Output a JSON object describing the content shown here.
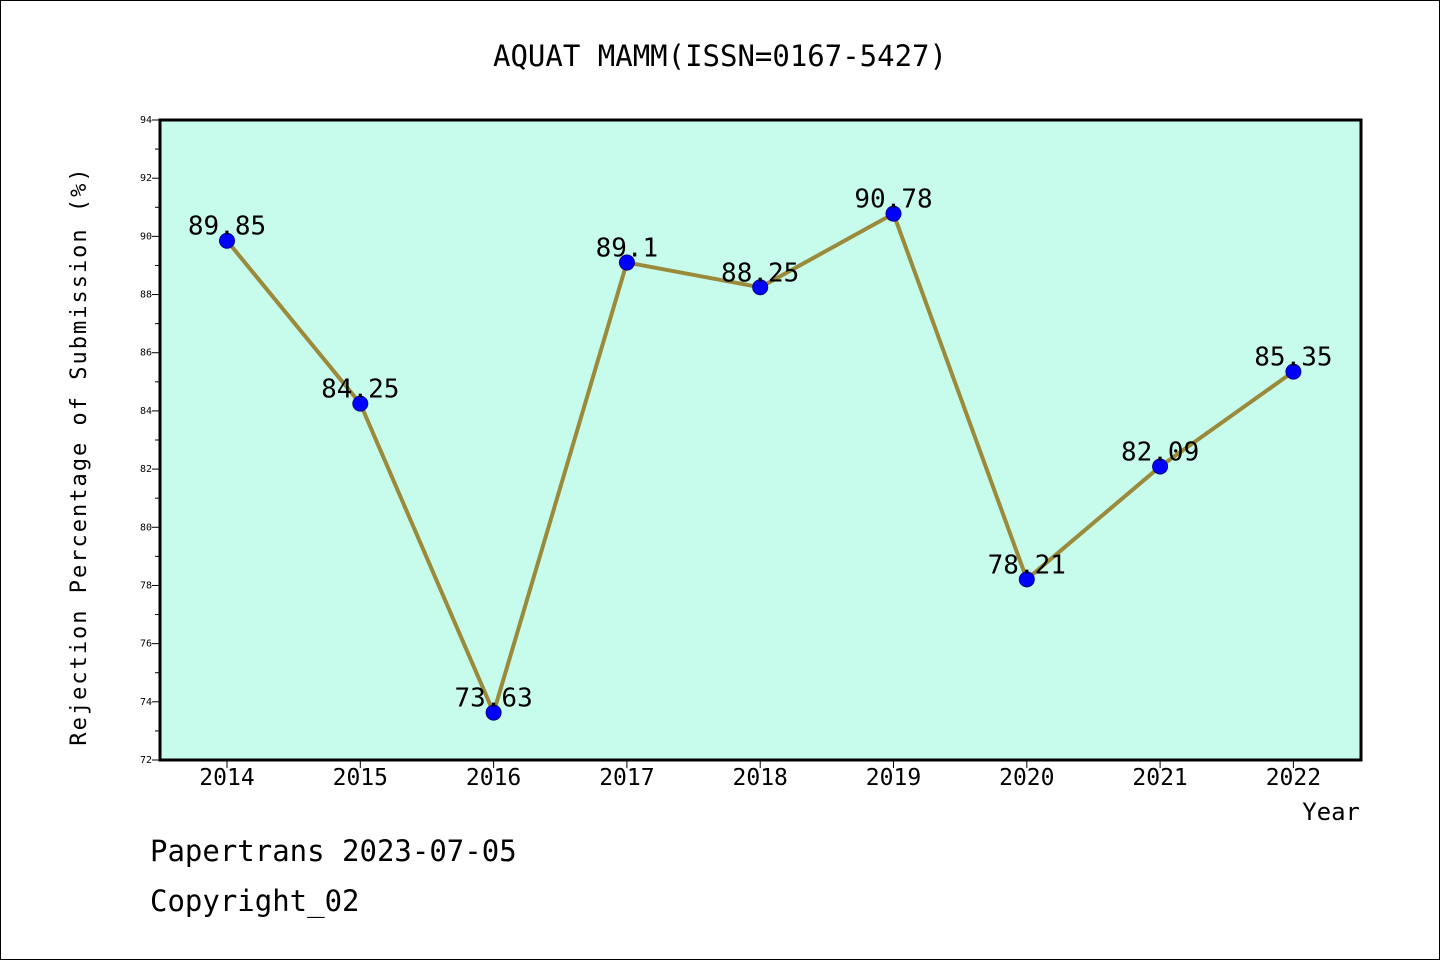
{
  "chart_data": {
    "type": "line",
    "title": "AQUAT MAMM(ISSN=0167-5427)",
    "xlabel": "Year",
    "ylabel": "Rejection Percentage of Submission (%)",
    "categories": [
      "2014",
      "2015",
      "2016",
      "2017",
      "2018",
      "2019",
      "2020",
      "2021",
      "2022"
    ],
    "series": [
      {
        "values": [
          89.85,
          84.25,
          73.63,
          89.1,
          88.25,
          90.78,
          78.21,
          82.09,
          85.35
        ],
        "data_labels": [
          "89.85",
          "84.25",
          "73.63",
          "89.1",
          "88.25",
          "90.78",
          "78.21",
          "82.09",
          "85.35"
        ]
      }
    ],
    "ylim": [
      72,
      94
    ],
    "yticks": [
      72,
      74,
      76,
      78,
      80,
      82,
      84,
      86,
      88,
      90,
      92,
      94
    ],
    "grid": false,
    "legend": "none",
    "colors": {
      "plot_background": "#c7fcec",
      "line": "#9a8a3a",
      "marker": "#0000ff",
      "axes": "#000000"
    }
  },
  "footer": {
    "line1": "Papertrans 2023-07-05",
    "line2": "Copyright_02"
  }
}
